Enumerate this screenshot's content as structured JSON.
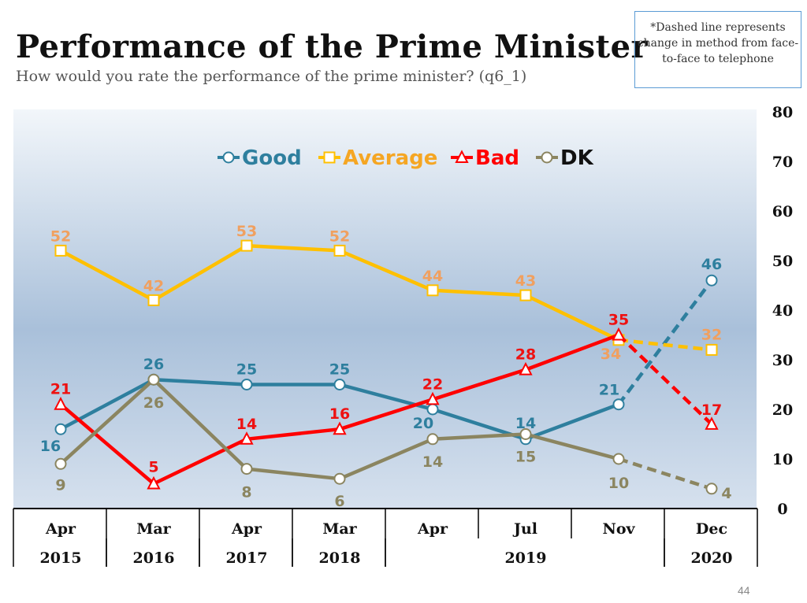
{
  "title": "Performance of the Prime Minister",
  "subtitle": "How would you rate the performance of the prime minister? (q6_1)",
  "note": "*Dashed line represents change in method from face-to-face to telephone",
  "page_number": "44",
  "chart_data": {
    "type": "line",
    "categories": [
      "Apr 2015",
      "Mar 2016",
      "Apr 2017",
      "Mar 2018",
      "Apr 2019",
      "Jul 2019",
      "Nov 2019",
      "Dec 2020"
    ],
    "x_month": [
      "Apr",
      "Mar",
      "Apr",
      "Mar",
      "Apr",
      "Jul",
      "Nov",
      "Dec"
    ],
    "x_year_groups": [
      {
        "label": "2015",
        "span": 1
      },
      {
        "label": "2016",
        "span": 1
      },
      {
        "label": "2017",
        "span": 1
      },
      {
        "label": "2018",
        "span": 1
      },
      {
        "label": "2019",
        "span": 3
      },
      {
        "label": "2020",
        "span": 1
      }
    ],
    "y_range": [
      0,
      80
    ],
    "y_ticks": [
      0,
      10,
      20,
      30,
      40,
      50,
      60,
      70,
      80
    ],
    "y_axis_position": "right",
    "legend_position": "top",
    "dashed_last_segment": true,
    "series": [
      {
        "name": "Good",
        "color": "#2e7f9e",
        "label_color": "#2e7f9e",
        "marker": "circle",
        "values": [
          16,
          26,
          25,
          25,
          20,
          14,
          21,
          46
        ]
      },
      {
        "name": "Average",
        "color": "#ffc000",
        "label_color": "#f0a060",
        "marker": "square",
        "values": [
          52,
          42,
          53,
          52,
          44,
          43,
          34,
          32
        ]
      },
      {
        "name": "Bad",
        "color": "#ff0000",
        "label_color": "#ee1111",
        "marker": "triangle",
        "values": [
          21,
          5,
          14,
          16,
          22,
          28,
          35,
          17
        ]
      },
      {
        "name": "DK",
        "color": "#8b8560",
        "label_color": "#8b8560",
        "marker": "circle",
        "values": [
          9,
          26,
          8,
          6,
          14,
          15,
          10,
          4
        ]
      }
    ]
  }
}
